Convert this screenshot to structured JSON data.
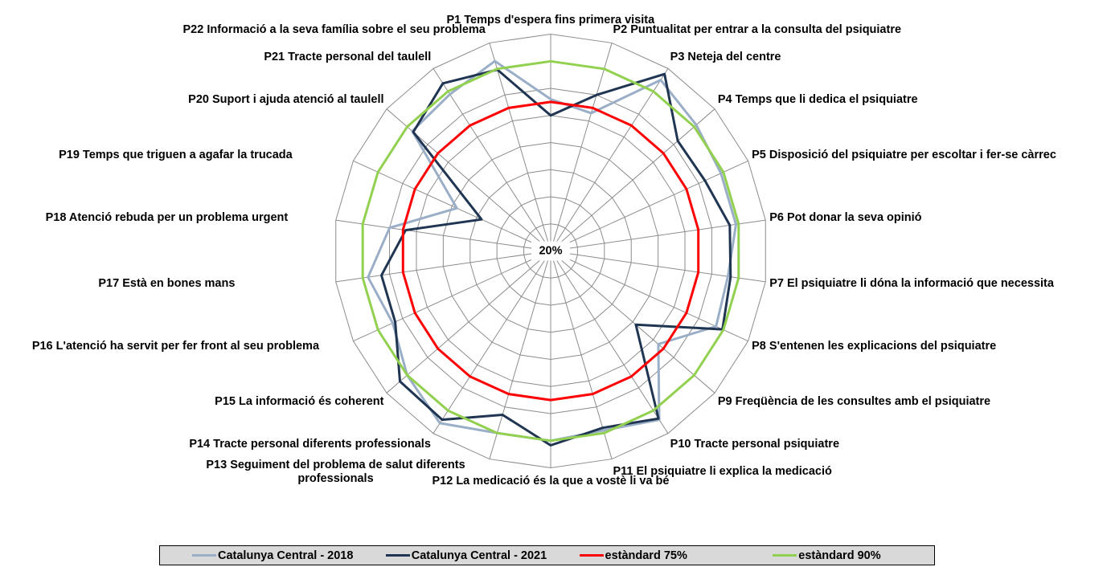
{
  "chart_data": {
    "type": "radar",
    "categories": [
      "P1 Temps d'espera fins primera visita",
      "P2 Puntualitat per entrar a la consulta del psiquiatre",
      "P3 Neteja del centre",
      "P4 Temps que li dedica el psiquiatre",
      "P5 Disposició del psiquiatre per escoltar i fer-se càrrec",
      "P6 Pot donar la seva opinió",
      "P7 El psiquiatre li dóna la informació que necessita",
      "P8 S'entenen les explicacions del psiquiatre",
      "P9 Freqüència de les consultes amb el psiquiatre",
      "P10 Tracte personal psiquiatre",
      "P11 El psiquiatre li explica la medicació",
      "P12 La medicació és la que a vostè li va bé",
      "P13 Seguiment del problema de salut diferents professionals",
      "P14 Tracte personal diferents professionals",
      "P15 La informació és coherent",
      "P16 L'atenció ha servit per fer front al seu problema",
      "P17 Està en bones mans",
      "P18 Atenció rebuda per un problema urgent",
      "P19 Temps que triguen a agafar la trucada",
      "P20 Suport i ajuda atenció al taulell",
      "P21 Tracte personal del taulell",
      "P22 Informació a la seva família sobre el seu problema"
    ],
    "series": [
      {
        "name": "Catalunya Central - 2018",
        "color": "#9aaec7",
        "values": [
          76,
          73,
          95,
          91,
          89,
          89,
          86,
          87,
          72.5,
          94,
          89,
          90,
          90,
          95.5,
          90,
          84,
          88,
          80,
          58,
          87.5,
          88.7,
          93
        ]
      },
      {
        "name": "Catalunya Central - 2021",
        "color": "#1f3552",
        "values": [
          70,
          80,
          97.6,
          82,
          82.5,
          86.7,
          87,
          89.6,
          61.5,
          93.5,
          88,
          91.7,
          83,
          94,
          93.5,
          83,
          83,
          74,
          48,
          87,
          93.5,
          89.7
        ]
      },
      {
        "name": "estàndard 75%",
        "color": "#ff0000",
        "values": [
          75,
          75,
          75,
          75,
          75,
          75,
          75,
          75,
          75,
          75,
          75,
          75,
          75,
          75,
          75,
          75,
          75,
          75,
          75,
          75,
          75,
          75
        ]
      },
      {
        "name": "estàndard 90%",
        "color": "#92d050",
        "values": [
          90,
          90,
          90,
          90,
          90,
          90,
          90,
          90,
          90,
          90,
          90,
          90,
          90,
          90,
          90,
          90,
          90,
          90,
          90,
          90,
          90,
          90
        ]
      }
    ],
    "ylim": [
      20,
      100
    ],
    "yticks": [
      {
        "value": 20,
        "label": "20%"
      },
      30,
      40,
      50,
      60,
      70,
      80,
      90,
      100
    ],
    "grid": true,
    "legend": "bottom"
  }
}
